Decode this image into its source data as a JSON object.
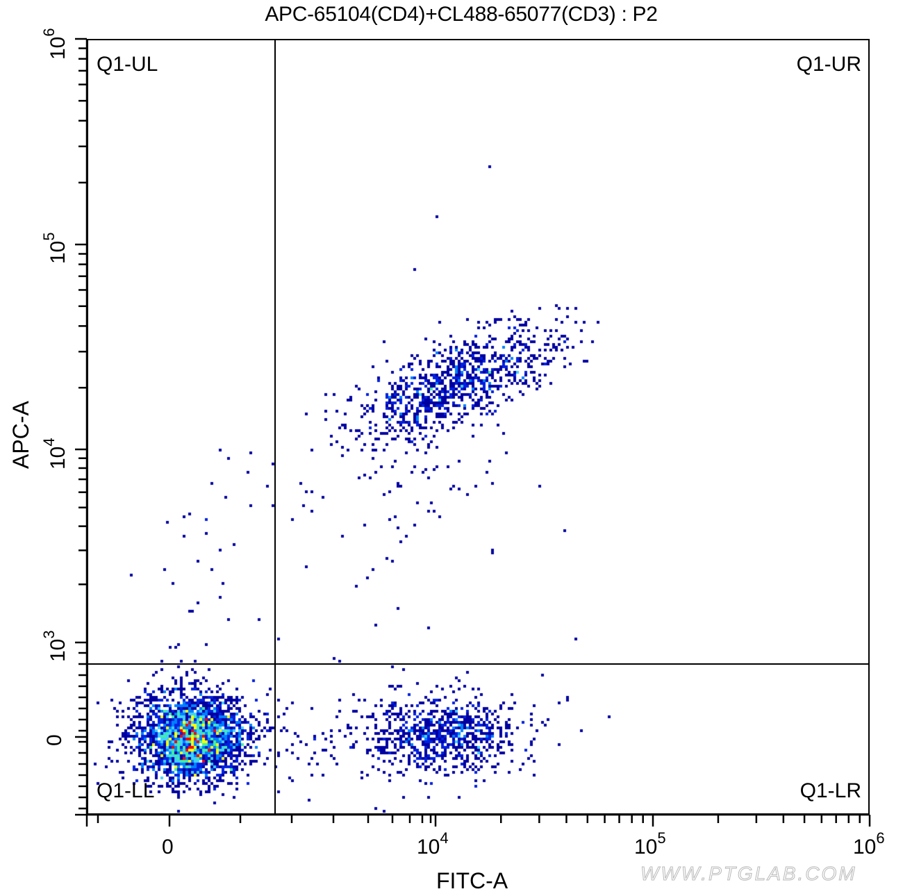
{
  "chart_data": {
    "type": "scatter",
    "subtype": "flow-cytometry-density-dot-plot",
    "title": "APC-65104(CD4)+CL488-65077(CD3) : P2",
    "xlabel": "FITC-A",
    "ylabel": "APC-A",
    "x_scale": "biexponential (logicle)",
    "y_scale": "biexponential (logicle)",
    "x_tick_labels": [
      "0",
      "10^4",
      "10^5",
      "10^6"
    ],
    "y_tick_labels": [
      "0",
      "10^3",
      "10^4",
      "10^5",
      "10^6"
    ],
    "xlim": [
      -1500,
      1000000
    ],
    "ylim": [
      -500,
      1000000
    ],
    "grid": false,
    "legend": null,
    "gates": {
      "type": "quadrant",
      "name": "Q1",
      "x_threshold_approx": 2000,
      "y_threshold_approx": 800,
      "quadrants": [
        "Q1-UL",
        "Q1-UR",
        "Q1-LL",
        "Q1-LR"
      ]
    },
    "colormap": [
      "#0000a0",
      "#0020e0",
      "#0080ff",
      "#40d0ff",
      "#40f0a0",
      "#a0ff40",
      "#ffff00",
      "#ff0000"
    ],
    "populations": [
      {
        "name": "CD3- CD4- (Q1-LL)",
        "quadrant": "Q1-LL",
        "center_fitc": 100,
        "center_apc": 0,
        "density": "high",
        "peak_color": "red"
      },
      {
        "name": "CD3+ CD4- (Q1-LR)",
        "quadrant": "Q1-LR",
        "center_fitc": 11000,
        "center_apc": 0,
        "density": "medium",
        "peak_color": "light-blue"
      },
      {
        "name": "CD3+ CD4+ (Q1-UR)",
        "quadrant": "Q1-UR",
        "center_fitc": 13000,
        "center_apc": 22000,
        "density": "medium",
        "peak_color": "cyan"
      },
      {
        "name": "sparse events (Q1-UL)",
        "quadrant": "Q1-UL",
        "center_fitc": 300,
        "center_apc": 2500,
        "density": "very low",
        "peak_color": "dark-blue"
      }
    ]
  },
  "labels": {
    "title": "APC-65104(CD4)+CL488-65077(CD3) : P2",
    "x_axis": "FITC-A",
    "y_axis": "APC-A",
    "quadrants": {
      "ul": "Q1-UL",
      "ur": "Q1-UR",
      "ll": "Q1-LL",
      "lr": "Q1-LR"
    },
    "x_ticks": {
      "zero": "0",
      "t4_base": "10",
      "t4_exp": "4",
      "t5_base": "10",
      "t5_exp": "5",
      "t6_base": "10",
      "t6_exp": "6"
    },
    "y_ticks": {
      "zero": "0",
      "t3_base": "10",
      "t3_exp": "3",
      "t4_base": "10",
      "t4_exp": "4",
      "t5_base": "10",
      "t5_exp": "5",
      "t6_base": "10",
      "t6_exp": "6"
    },
    "watermark": "WWW.PTGLAB.COM"
  }
}
